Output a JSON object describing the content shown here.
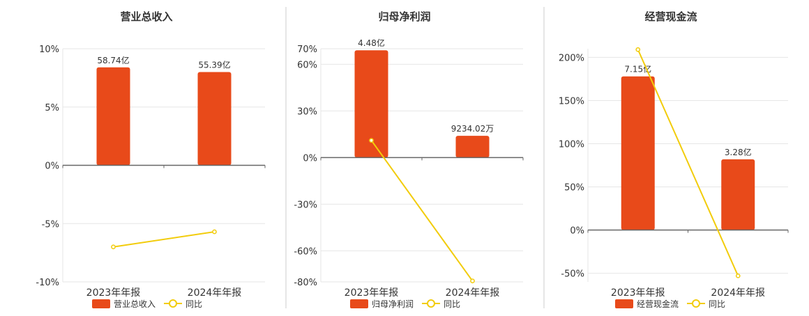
{
  "colors": {
    "bar": "#e84a1a",
    "line": "#f2cc0c",
    "axis": "#666666",
    "grid": "#e6e6e6",
    "divider": "#cccccc",
    "text": "#333333"
  },
  "icons": {
    "legend_bar": "orange-rect-swatch",
    "legend_line": "yellow-line-circle-marker"
  },
  "chart_data": [
    {
      "type": "bar",
      "title": "营业总收入",
      "categories": [
        "2023年年报",
        "2024年年报"
      ],
      "series": [
        {
          "name": "营业总收入",
          "type": "bar",
          "labels": [
            "58.74亿",
            "55.39亿"
          ],
          "values": [
            8.4,
            8.0
          ]
        },
        {
          "name": "同比",
          "type": "line",
          "values": [
            -7.0,
            -5.7
          ]
        }
      ],
      "ylim": [
        -10,
        10
      ],
      "yticks": [
        10,
        5,
        0,
        -5,
        -10
      ],
      "yticklabels": [
        "10%",
        "5%",
        "0%",
        "-5%",
        "-10%"
      ],
      "grid": true,
      "legend": "bottom"
    },
    {
      "type": "bar",
      "title": "归母净利润",
      "categories": [
        "2023年年报",
        "2024年年报"
      ],
      "series": [
        {
          "name": "归母净利润",
          "type": "bar",
          "labels": [
            "4.48亿",
            "9234.02万"
          ],
          "values": [
            69,
            14
          ]
        },
        {
          "name": "同比",
          "type": "line",
          "values": [
            11,
            -79.4
          ]
        }
      ],
      "ylim": [
        -80,
        70
      ],
      "yticks": [
        70,
        60,
        30,
        0,
        -30,
        -60,
        -80
      ],
      "yticklabels": [
        "70%",
        "60%",
        "30%",
        "0%",
        "-30%",
        "-60%",
        "-80%"
      ],
      "grid": true,
      "legend": "bottom"
    },
    {
      "type": "bar",
      "title": "经营现金流",
      "categories": [
        "2023年年报",
        "2024年年报"
      ],
      "series": [
        {
          "name": "经营现金流",
          "type": "bar",
          "labels": [
            "7.15亿",
            "3.28亿"
          ],
          "values": [
            178,
            82
          ]
        },
        {
          "name": "同比",
          "type": "line",
          "values": [
            209,
            -53
          ]
        }
      ],
      "ylim": [
        -60,
        210
      ],
      "yticks": [
        200,
        150,
        100,
        50,
        0,
        -50
      ],
      "yticklabels": [
        "200%",
        "150%",
        "100%",
        "50%",
        "0%",
        "-50%"
      ],
      "grid": true,
      "legend": "bottom"
    }
  ]
}
